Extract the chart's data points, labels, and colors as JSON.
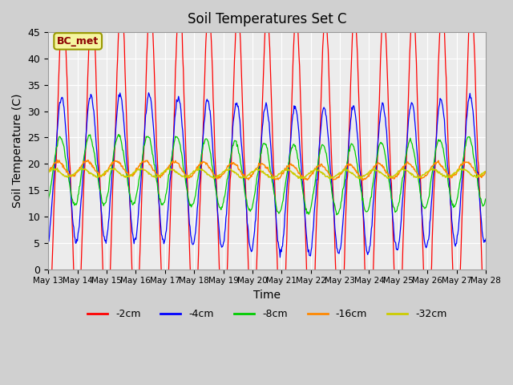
{
  "title": "Soil Temperatures Set C",
  "xlabel": "Time",
  "ylabel": "Soil Temperature (C)",
  "ylim": [
    0,
    45
  ],
  "yticks": [
    0,
    5,
    10,
    15,
    20,
    25,
    30,
    35,
    40,
    45
  ],
  "annotation_text": "BC_met",
  "legend_labels": [
    "-2cm",
    "-4cm",
    "-8cm",
    "-16cm",
    "-32cm"
  ],
  "legend_colors": [
    "#ff0000",
    "#0000ff",
    "#00cc00",
    "#ff8800",
    "#cccc00"
  ],
  "xtick_labels": [
    "May 13",
    "May 14",
    "May 15",
    "May 16",
    "May 17",
    "May 18",
    "May 19",
    "May 20",
    "May 21",
    "May 22",
    "May 23",
    "May 24",
    "May 25",
    "May 26",
    "May 27",
    "May 28"
  ],
  "num_days": 15,
  "periods_per_day": 48
}
